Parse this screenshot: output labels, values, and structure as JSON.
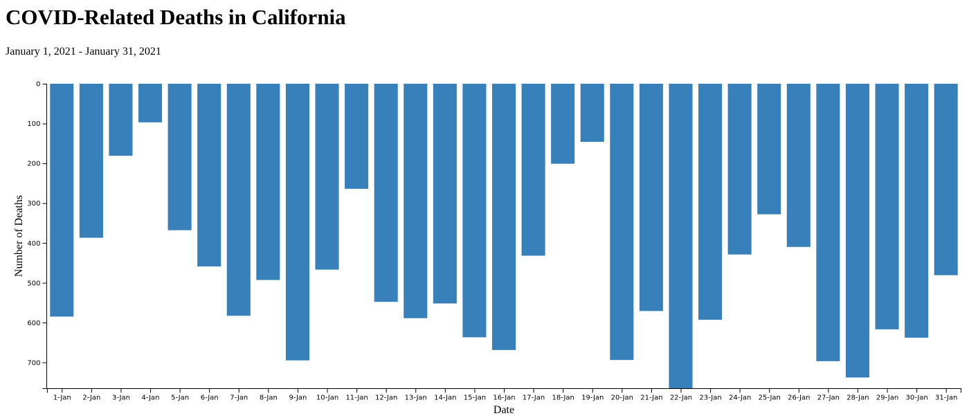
{
  "header": {
    "title": "COVID-Related Deaths in California",
    "subtitle": "January 1, 2021 - January 31, 2021"
  },
  "colors": {
    "bar": "#3780ba",
    "axis": "#000000"
  },
  "chart_data": {
    "type": "bar",
    "orientation": "vertical, bars hanging downward from top",
    "categories": [
      "1-Jan",
      "2-Jan",
      "3-Jan",
      "4-Jan",
      "5-Jan",
      "6-Jan",
      "7-Jan",
      "8-Jan",
      "9-Jan",
      "10-Jan",
      "11-Jan",
      "12-Jan",
      "13-Jan",
      "14-Jan",
      "15-Jan",
      "16-Jan",
      "17-Jan",
      "18-Jan",
      "19-Jan",
      "20-Jan",
      "21-Jan",
      "22-Jan",
      "23-Jan",
      "24-Jan",
      "25-Jan",
      "26-Jan",
      "27-Jan",
      "28-Jan",
      "29-Jan",
      "30-Jan",
      "31-Jan"
    ],
    "values": [
      585,
      387,
      181,
      97,
      368,
      459,
      583,
      493,
      695,
      467,
      264,
      548,
      589,
      552,
      637,
      669,
      432,
      201,
      146,
      694,
      571,
      765,
      593,
      429,
      328,
      410,
      697,
      738,
      617,
      638,
      481
    ],
    "xlabel": "Date",
    "ylabel": "Number of Deaths",
    "ylim": [
      0,
      765
    ],
    "yticks": [
      0,
      100,
      200,
      300,
      400,
      500,
      600,
      700
    ],
    "y_axis_inverted": true,
    "grid": false,
    "legend": "none"
  }
}
